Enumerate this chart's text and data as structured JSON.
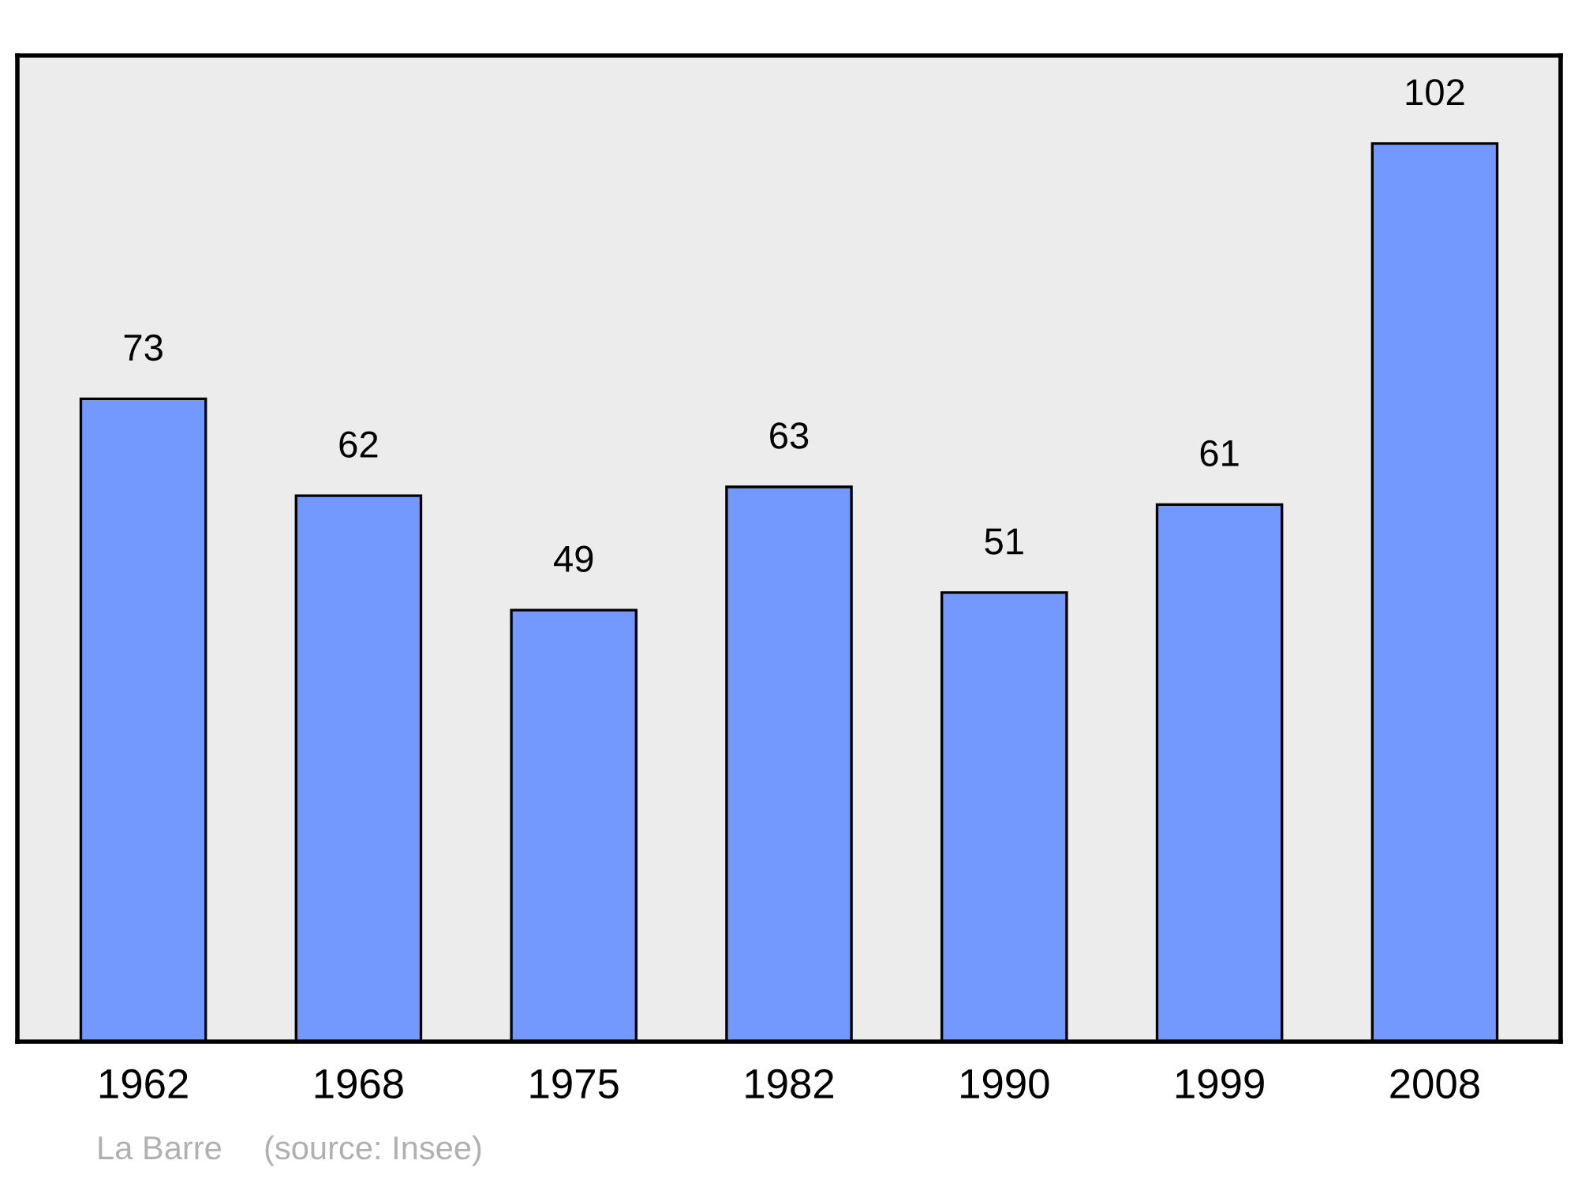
{
  "chart_data": {
    "type": "bar",
    "categories": [
      "1962",
      "1968",
      "1975",
      "1982",
      "1990",
      "1999",
      "2008"
    ],
    "values": [
      73,
      62,
      49,
      63,
      51,
      61,
      102
    ],
    "color": "#7399ff",
    "ylim": [
      0,
      112
    ],
    "data_labels": true,
    "tick_labels": "x",
    "grid": false,
    "legend": false,
    "annotations": [
      "La Barre",
      "(source: Insee)"
    ]
  }
}
